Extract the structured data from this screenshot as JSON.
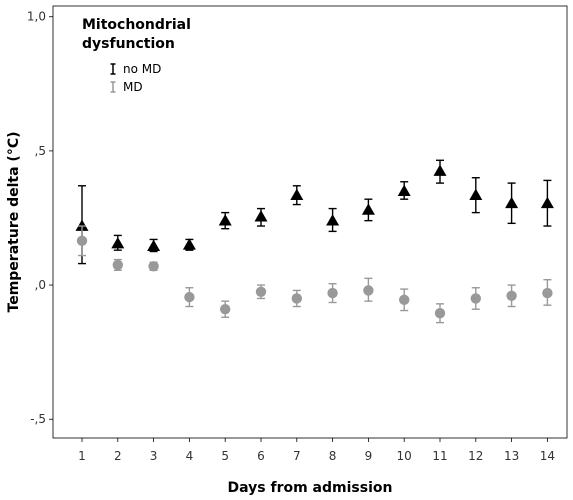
{
  "chart_data": {
    "type": "scatter",
    "xlabel": "Days from admission",
    "ylabel": "Temperature delta (°C)",
    "x_categories": [
      "1",
      "2",
      "3",
      "4",
      "5",
      "6",
      "7",
      "8",
      "9",
      "10",
      "11",
      "12",
      "13",
      "14"
    ],
    "y_ticks": [
      {
        "value": 1.0,
        "label": "1,0"
      },
      {
        "value": 0.5,
        "label": ",5"
      },
      {
        "value": 0.0,
        "label": ",0"
      },
      {
        "value": -0.5,
        "label": "-,5"
      }
    ],
    "ylim": [
      -0.57,
      1.04
    ],
    "grid": false,
    "legend": {
      "title_line1": "Mitochondrial",
      "title_line2": "dysfunction",
      "position": "top-left"
    },
    "series": [
      {
        "name": "no MD",
        "marker": "triangle",
        "color": "#000000",
        "points": [
          {
            "x": "1",
            "mean": 0.22,
            "low": 0.08,
            "high": 0.37
          },
          {
            "x": "2",
            "mean": 0.155,
            "low": 0.13,
            "high": 0.185
          },
          {
            "x": "3",
            "mean": 0.145,
            "low": 0.125,
            "high": 0.17
          },
          {
            "x": "4",
            "mean": 0.15,
            "low": 0.13,
            "high": 0.17
          },
          {
            "x": "5",
            "mean": 0.24,
            "low": 0.21,
            "high": 0.27
          },
          {
            "x": "6",
            "mean": 0.255,
            "low": 0.22,
            "high": 0.285
          },
          {
            "x": "7",
            "mean": 0.335,
            "low": 0.3,
            "high": 0.37
          },
          {
            "x": "8",
            "mean": 0.24,
            "low": 0.2,
            "high": 0.285
          },
          {
            "x": "9",
            "mean": 0.28,
            "low": 0.24,
            "high": 0.32
          },
          {
            "x": "10",
            "mean": 0.35,
            "low": 0.32,
            "high": 0.385
          },
          {
            "x": "11",
            "mean": 0.425,
            "low": 0.38,
            "high": 0.465
          },
          {
            "x": "12",
            "mean": 0.335,
            "low": 0.27,
            "high": 0.4
          },
          {
            "x": "13",
            "mean": 0.305,
            "low": 0.23,
            "high": 0.38
          },
          {
            "x": "14",
            "mean": 0.305,
            "low": 0.22,
            "high": 0.39
          }
        ]
      },
      {
        "name": "MD",
        "marker": "circle",
        "color": "#999999",
        "points": [
          {
            "x": "1",
            "mean": 0.165,
            "low": 0.11,
            "high": 0.22
          },
          {
            "x": "2",
            "mean": 0.075,
            "low": 0.055,
            "high": 0.095
          },
          {
            "x": "3",
            "mean": 0.07,
            "low": 0.055,
            "high": 0.085
          },
          {
            "x": "4",
            "mean": -0.045,
            "low": -0.08,
            "high": -0.01
          },
          {
            "x": "5",
            "mean": -0.09,
            "low": -0.12,
            "high": -0.06
          },
          {
            "x": "6",
            "mean": -0.025,
            "low": -0.05,
            "high": 0.0
          },
          {
            "x": "7",
            "mean": -0.05,
            "low": -0.08,
            "high": -0.02
          },
          {
            "x": "8",
            "mean": -0.03,
            "low": -0.065,
            "high": 0.005
          },
          {
            "x": "9",
            "mean": -0.02,
            "low": -0.06,
            "high": 0.025
          },
          {
            "x": "10",
            "mean": -0.055,
            "low": -0.095,
            "high": -0.015
          },
          {
            "x": "11",
            "mean": -0.105,
            "low": -0.14,
            "high": -0.07
          },
          {
            "x": "12",
            "mean": -0.05,
            "low": -0.09,
            "high": -0.01
          },
          {
            "x": "13",
            "mean": -0.04,
            "low": -0.08,
            "high": 0.0
          },
          {
            "x": "14",
            "mean": -0.03,
            "low": -0.075,
            "high": 0.02
          }
        ]
      }
    ]
  }
}
